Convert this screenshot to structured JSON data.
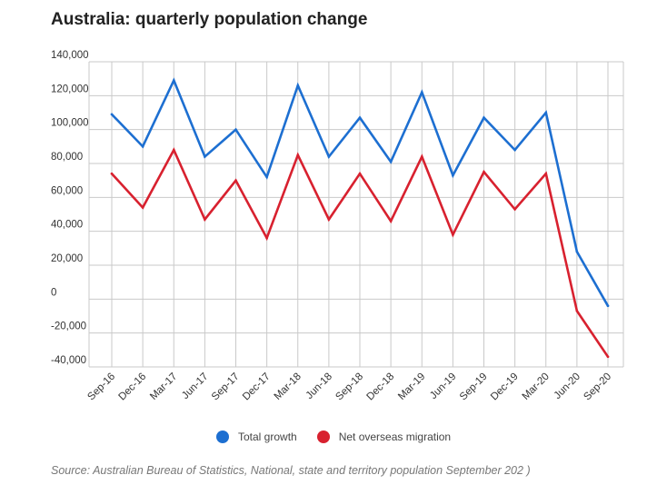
{
  "title": "Australia: quarterly population change",
  "source": "Source: Australian Bureau of Statistics, National, state and territory population September 202 )",
  "colors": {
    "total": "#1d6fd1",
    "migration": "#d8212f",
    "grid": "#c9c9c9",
    "axis": "#333333"
  },
  "chart_data": {
    "type": "line",
    "title": "Australia: quarterly population change",
    "xlabel": "",
    "ylabel": "",
    "categories": [
      "Sep-16",
      "Dec-16",
      "Mar-17",
      "Jun-17",
      "Sep-17",
      "Dec-17",
      "Mar-18",
      "Jun-18",
      "Sep-18",
      "Dec-18",
      "Mar-19",
      "Jun-19",
      "Sep-19",
      "Dec-19",
      "Mar-20",
      "Jun-20",
      "Sep-20"
    ],
    "series": [
      {
        "name": "Total growth",
        "color": "#1d6fd1",
        "values": [
          109000,
          90000,
          129000,
          84000,
          100000,
          72000,
          126000,
          84000,
          107000,
          81000,
          122000,
          73000,
          107000,
          88000,
          110000,
          28000,
          -4000
        ]
      },
      {
        "name": "Net overseas migration",
        "color": "#d8212f",
        "values": [
          74000,
          54000,
          88000,
          47000,
          70000,
          36000,
          85000,
          47000,
          74000,
          46000,
          84000,
          38000,
          75000,
          53000,
          74000,
          -7000,
          -34000
        ]
      }
    ],
    "ylim": [
      -40000,
      140000
    ],
    "yticks": [
      "140,000",
      "120,000",
      "100,000",
      "80,000",
      "60,000",
      "40,000",
      "20,000",
      "0",
      "-20,000",
      "-40,000"
    ],
    "grid": true,
    "legend": "bottom-center"
  }
}
